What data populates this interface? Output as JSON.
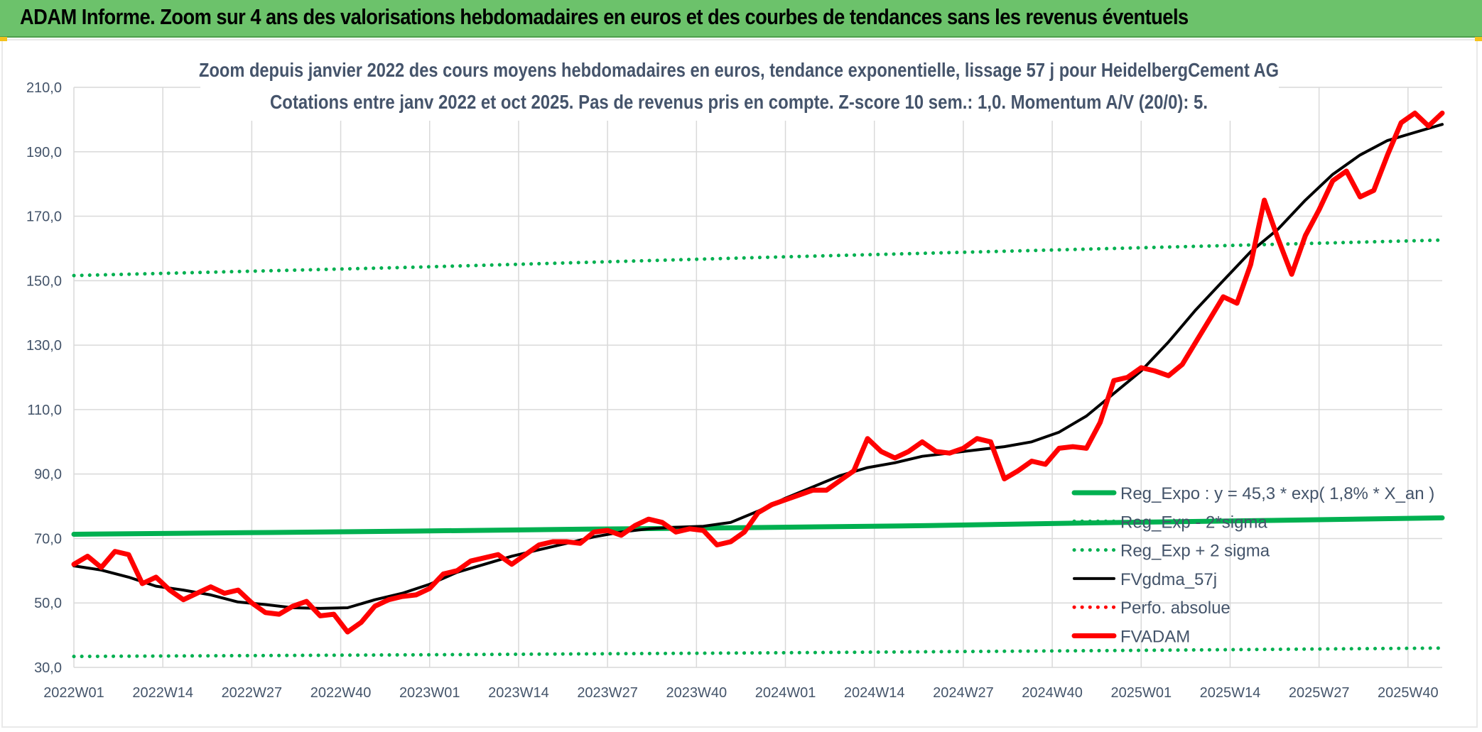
{
  "banner": {
    "title": "ADAM Informe. Zoom sur 4 ans des valorisations hebdomadaires en euros et des courbes de tendances sans les revenus éventuels"
  },
  "colors": {
    "banner_bg": "#6cc26b",
    "regression": "#00b050",
    "fvadam": "#ff0000",
    "fvgdma": "#000000",
    "perfo": "#ff0000",
    "axis_text": "#44546a",
    "grid": "#d9d9d9"
  },
  "chart_data": {
    "type": "line",
    "title": "Zoom depuis janvier 2022 des cours moyens hebdomadaires en euros, tendance exponentielle, lissage 57 j pour HeidelbergCement AG",
    "subtitle": "Cotations entre janv 2022 et oct 2025. Pas de revenus pris en compte. Z-score 10 sem.: 1,0. Momentum A/V (20/0): 5.",
    "xlabel": "",
    "ylabel": "",
    "ylim": [
      30,
      210
    ],
    "yticks": [
      "210,0",
      "190,0",
      "170,0",
      "150,0",
      "130,0",
      "110,0",
      "90,0",
      "70,0",
      "50,0",
      "30,0"
    ],
    "xticks": [
      "2022W01",
      "2022W14",
      "2022W27",
      "2022W40",
      "2023W01",
      "2023W14",
      "2023W27",
      "2023W40",
      "2024W01",
      "2024W14",
      "2024W27",
      "2024W40",
      "2025W01",
      "2025W14",
      "2025W27",
      "2025W40"
    ],
    "x_range": [
      0,
      200
    ],
    "xtick_positions": [
      0,
      13,
      26,
      39,
      52,
      65,
      78,
      91,
      104,
      117,
      130,
      143,
      156,
      169,
      182,
      195
    ],
    "grid": true,
    "legend_position": "bottom-right",
    "legend": [
      "Reg_Expo : y = 45,3 * exp( 1,8% *  X_an )",
      "Reg_Exp - 2*sigma",
      "Reg_Exp + 2 sigma",
      "FVgdma_57j",
      "Perfo. absolue",
      "FVADAM"
    ],
    "series": [
      {
        "name": "Reg_Expo : y = 45,3 * exp( 1,8% *  X_an )",
        "style": "thick",
        "color": "#00b050",
        "x": [
          0,
          25,
          50,
          75,
          100,
          125,
          150,
          175,
          200
        ],
        "y": [
          71.3,
          71.8,
          72.3,
          72.9,
          73.4,
          74.0,
          74.9,
          75.6,
          76.4
        ]
      },
      {
        "name": "Reg_Exp - 2*sigma",
        "style": "dotted",
        "color": "#00b050",
        "x": [
          0,
          50,
          100,
          150,
          200
        ],
        "y": [
          33.4,
          33.9,
          34.5,
          35.2,
          36.0
        ]
      },
      {
        "name": "Reg_Exp + 2 sigma",
        "style": "dotted",
        "color": "#00b050",
        "x": [
          0,
          50,
          100,
          150,
          200
        ],
        "y": [
          151.6,
          154.2,
          157.2,
          159.9,
          162.6
        ]
      },
      {
        "name": "FVgdma_57j",
        "style": "solid",
        "color": "#000000",
        "x": [
          0,
          4,
          8,
          12,
          16,
          20,
          24,
          28,
          32,
          36,
          40,
          44,
          48,
          52,
          56,
          60,
          64,
          68,
          72,
          76,
          80,
          84,
          88,
          92,
          96,
          100,
          104,
          108,
          112,
          116,
          120,
          124,
          128,
          132,
          136,
          140,
          144,
          148,
          152,
          156,
          160,
          164,
          168,
          172,
          176,
          180,
          184,
          188,
          192,
          196,
          200
        ],
        "y": [
          61.5,
          60.2,
          58.0,
          55.2,
          54.0,
          52.5,
          50.3,
          49.5,
          48.5,
          48.3,
          48.5,
          51.0,
          53.0,
          55.8,
          59.5,
          62.0,
          64.5,
          66.5,
          68.5,
          70.5,
          72.0,
          73.0,
          73.5,
          73.8,
          75.0,
          78.5,
          82.5,
          86.0,
          89.5,
          92.0,
          93.5,
          95.5,
          96.5,
          97.5,
          98.5,
          100.0,
          103.0,
          108.0,
          115.0,
          122.0,
          131.0,
          141.0,
          150.0,
          159.0,
          166.0,
          175.0,
          183.0,
          189.0,
          193.5,
          196.0,
          198.5
        ]
      },
      {
        "name": "Perfo. absolue",
        "style": "dotted",
        "color": "#ff0000",
        "x": [],
        "y": []
      },
      {
        "name": "FVADAM",
        "style": "thick",
        "color": "#ff0000",
        "x": [
          0,
          2,
          4,
          6,
          8,
          10,
          12,
          14,
          16,
          18,
          20,
          22,
          24,
          26,
          28,
          30,
          32,
          34,
          36,
          38,
          40,
          42,
          44,
          46,
          48,
          50,
          52,
          54,
          56,
          58,
          60,
          62,
          64,
          66,
          68,
          70,
          72,
          74,
          76,
          78,
          80,
          82,
          84,
          86,
          88,
          90,
          92,
          94,
          96,
          98,
          100,
          102,
          104,
          106,
          108,
          110,
          112,
          114,
          116,
          118,
          120,
          122,
          124,
          126,
          128,
          130,
          132,
          134,
          136,
          138,
          140,
          142,
          144,
          146,
          148,
          150,
          152,
          154,
          156,
          158,
          160,
          162,
          164,
          166,
          168,
          170,
          172,
          174,
          176,
          178,
          180,
          182,
          184,
          186,
          188,
          190,
          192,
          194,
          196,
          198,
          200
        ],
        "y": [
          62.0,
          64.5,
          61.0,
          66.0,
          65.0,
          56.0,
          58.0,
          54.0,
          51.0,
          53.0,
          55.0,
          53.0,
          54.0,
          50.0,
          47.0,
          46.5,
          49.0,
          50.5,
          46.0,
          46.5,
          41.0,
          44.0,
          49.0,
          51.0,
          52.0,
          52.5,
          54.5,
          59.0,
          60.0,
          63.0,
          64.0,
          65.0,
          62.0,
          65.0,
          68.0,
          69.0,
          69.0,
          68.5,
          72.0,
          72.5,
          71.0,
          74.0,
          76.0,
          75.0,
          72.0,
          73.0,
          72.5,
          68.0,
          69.0,
          72.0,
          78.0,
          80.5,
          82.0,
          83.5,
          85.0,
          85.0,
          88.0,
          91.0,
          101.0,
          97.0,
          95.0,
          97.0,
          100.0,
          97.0,
          96.5,
          98.0,
          101.0,
          100.0,
          88.5,
          91.0,
          94.0,
          93.0,
          98.0,
          98.5,
          98.0,
          106.0,
          119.0,
          120.0,
          123.0,
          122.0,
          120.5,
          124.0,
          131.0,
          138.0,
          145.0,
          143.0,
          155.0,
          175.0,
          163.0,
          152.0,
          164.0,
          172.0,
          181.0,
          184.0,
          176.0,
          178.0,
          189.0,
          199.0,
          202.0,
          198.0,
          202.0
        ]
      }
    ]
  }
}
